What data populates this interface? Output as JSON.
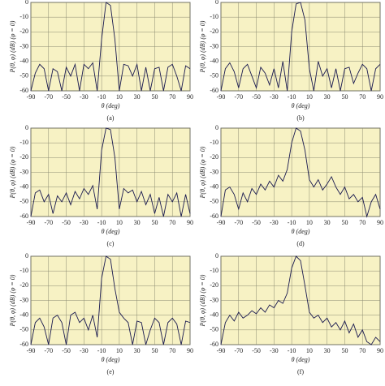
{
  "chart_data": [
    {
      "type": "line",
      "caption": "(a)",
      "ylabel": "P(θ, φ) (dB) (φ = 0)",
      "xlabel": "θ (deg)",
      "x": [
        -90,
        -85,
        -80,
        -75,
        -70,
        -65,
        -60,
        -55,
        -50,
        -45,
        -40,
        -35,
        -30,
        -25,
        -20,
        -15,
        -10,
        -5,
        0,
        5,
        10,
        15,
        20,
        25,
        30,
        35,
        40,
        45,
        50,
        55,
        60,
        65,
        70,
        75,
        80,
        85,
        90
      ],
      "values": [
        -60,
        -48,
        -42,
        -45,
        -60,
        -45,
        -47,
        -60,
        -44,
        -50,
        -42,
        -60,
        -42,
        -45,
        -41,
        -60,
        -25,
        0,
        -2,
        -25,
        -60,
        -42,
        -43,
        -50,
        -42,
        -60,
        -44,
        -60,
        -45,
        -44,
        -60,
        -44,
        -42,
        -50,
        -60,
        -43,
        -45
      ],
      "color": "#1a1a50",
      "xlim": [
        -90,
        90
      ],
      "ylim": [
        -60,
        0
      ],
      "xticks": [
        -90,
        -70,
        -50,
        -30,
        -10,
        10,
        30,
        50,
        70,
        90
      ],
      "yticks": [
        0,
        -10,
        -20,
        -30,
        -40,
        -50,
        -60
      ],
      "grid": true
    },
    {
      "type": "line",
      "caption": "(b)",
      "ylabel": "P(θ, φ) (dB) (φ = 0)",
      "xlabel": "θ (deg)",
      "x": [
        -90,
        -85,
        -80,
        -75,
        -70,
        -65,
        -60,
        -55,
        -50,
        -45,
        -40,
        -35,
        -30,
        -25,
        -20,
        -15,
        -10,
        -5,
        0,
        5,
        10,
        15,
        20,
        25,
        30,
        35,
        40,
        45,
        50,
        55,
        60,
        65,
        70,
        75,
        80,
        85,
        90
      ],
      "values": [
        -60,
        -45,
        -41,
        -47,
        -58,
        -45,
        -42,
        -50,
        -58,
        -44,
        -48,
        -56,
        -45,
        -58,
        -40,
        -60,
        -20,
        -1,
        0,
        -12,
        -45,
        -60,
        -40,
        -50,
        -45,
        -58,
        -45,
        -60,
        -45,
        -44,
        -55,
        -48,
        -42,
        -45,
        -60,
        -45,
        -42
      ],
      "color": "#1a1a50",
      "xlim": [
        -90,
        90
      ],
      "ylim": [
        -60,
        0
      ],
      "xticks": [
        -90,
        -70,
        -50,
        -30,
        -10,
        10,
        30,
        50,
        70,
        90
      ],
      "yticks": [
        0,
        -10,
        -20,
        -30,
        -40,
        -50,
        -60
      ],
      "grid": true
    },
    {
      "type": "line",
      "caption": "(c)",
      "ylabel": "P(θ, φ) (dB) (φ = 0)",
      "xlabel": "θ (deg)",
      "x": [
        -90,
        -85,
        -80,
        -75,
        -70,
        -65,
        -60,
        -55,
        -50,
        -45,
        -40,
        -35,
        -30,
        -25,
        -20,
        -15,
        -10,
        -5,
        0,
        5,
        10,
        15,
        20,
        25,
        30,
        35,
        40,
        45,
        50,
        55,
        60,
        65,
        70,
        75,
        80,
        85,
        90
      ],
      "values": [
        -60,
        -44,
        -42,
        -50,
        -45,
        -58,
        -46,
        -50,
        -44,
        -52,
        -43,
        -48,
        -41,
        -45,
        -39,
        -55,
        -15,
        0,
        -1,
        -20,
        -55,
        -41,
        -44,
        -42,
        -50,
        -43,
        -52,
        -45,
        -58,
        -47,
        -60,
        -45,
        -50,
        -44,
        -60,
        -45,
        -58
      ],
      "color": "#1a1a50",
      "xlim": [
        -90,
        90
      ],
      "ylim": [
        -60,
        0
      ],
      "xticks": [
        -90,
        -70,
        -50,
        -30,
        -10,
        10,
        30,
        50,
        70,
        90
      ],
      "yticks": [
        0,
        -10,
        -20,
        -30,
        -40,
        -50,
        -60
      ],
      "grid": true
    },
    {
      "type": "line",
      "caption": "(d)",
      "ylabel": "P(θ, φ) (dB) (φ = 0)",
      "xlabel": "θ (deg)",
      "x": [
        -90,
        -85,
        -80,
        -75,
        -70,
        -65,
        -60,
        -55,
        -50,
        -45,
        -40,
        -35,
        -30,
        -25,
        -20,
        -15,
        -10,
        -5,
        0,
        5,
        10,
        15,
        20,
        25,
        30,
        35,
        40,
        45,
        50,
        55,
        60,
        65,
        70,
        75,
        80,
        85,
        90
      ],
      "values": [
        -60,
        -42,
        -40,
        -45,
        -55,
        -44,
        -50,
        -41,
        -45,
        -38,
        -42,
        -36,
        -40,
        -32,
        -36,
        -28,
        -10,
        0,
        -2,
        -15,
        -35,
        -40,
        -35,
        -42,
        -38,
        -33,
        -40,
        -45,
        -40,
        -48,
        -45,
        -50,
        -47,
        -60,
        -50,
        -45,
        -55
      ],
      "color": "#1a1a50",
      "xlim": [
        -90,
        90
      ],
      "ylim": [
        -60,
        0
      ],
      "xticks": [
        -90,
        -70,
        -50,
        -30,
        -10,
        10,
        30,
        50,
        70,
        90
      ],
      "yticks": [
        0,
        -10,
        -20,
        -30,
        -40,
        -50,
        -60
      ],
      "grid": true
    },
    {
      "type": "line",
      "caption": "(e)",
      "ylabel": "P(θ, φ) (dB) (φ = 0)",
      "xlabel": "θ (deg)",
      "x": [
        -90,
        -85,
        -80,
        -75,
        -70,
        -65,
        -60,
        -55,
        -50,
        -45,
        -40,
        -35,
        -30,
        -25,
        -20,
        -15,
        -10,
        -5,
        0,
        5,
        10,
        15,
        20,
        25,
        30,
        35,
        40,
        45,
        50,
        55,
        60,
        65,
        70,
        75,
        80,
        85,
        90
      ],
      "values": [
        -60,
        -45,
        -42,
        -48,
        -60,
        -42,
        -40,
        -45,
        -60,
        -40,
        -38,
        -45,
        -42,
        -50,
        -40,
        -55,
        -15,
        0,
        -2,
        -22,
        -38,
        -42,
        -45,
        -60,
        -44,
        -45,
        -60,
        -50,
        -42,
        -45,
        -60,
        -45,
        -42,
        -46,
        -60,
        -44,
        -45
      ],
      "color": "#1a1a50",
      "xlim": [
        -90,
        90
      ],
      "ylim": [
        -60,
        0
      ],
      "xticks": [
        -90,
        -70,
        -50,
        -30,
        -10,
        10,
        30,
        50,
        70,
        90
      ],
      "yticks": [
        0,
        -10,
        -20,
        -30,
        -40,
        -50,
        -60
      ],
      "grid": true
    },
    {
      "type": "line",
      "caption": "(f)",
      "ylabel": "P(θ, φ) (dB) (φ = 0)",
      "xlabel": "θ (deg)",
      "x": [
        -90,
        -85,
        -80,
        -75,
        -70,
        -65,
        -60,
        -55,
        -50,
        -45,
        -40,
        -35,
        -30,
        -25,
        -20,
        -15,
        -10,
        -5,
        0,
        5,
        10,
        15,
        20,
        25,
        30,
        35,
        40,
        45,
        50,
        55,
        60,
        65,
        70,
        75,
        80,
        85,
        90
      ],
      "values": [
        -60,
        -45,
        -40,
        -44,
        -38,
        -42,
        -40,
        -37,
        -39,
        -35,
        -38,
        -33,
        -35,
        -30,
        -32,
        -25,
        -8,
        0,
        -3,
        -20,
        -38,
        -42,
        -40,
        -45,
        -42,
        -48,
        -45,
        -50,
        -44,
        -52,
        -46,
        -55,
        -50,
        -58,
        -60,
        -55,
        -58
      ],
      "color": "#1a1a50",
      "xlim": [
        -90,
        90
      ],
      "ylim": [
        -60,
        0
      ],
      "xticks": [
        -90,
        -70,
        -50,
        -30,
        -10,
        10,
        30,
        50,
        70,
        90
      ],
      "yticks": [
        0,
        -10,
        -20,
        -30,
        -40,
        -50,
        -60
      ],
      "grid": true
    }
  ]
}
